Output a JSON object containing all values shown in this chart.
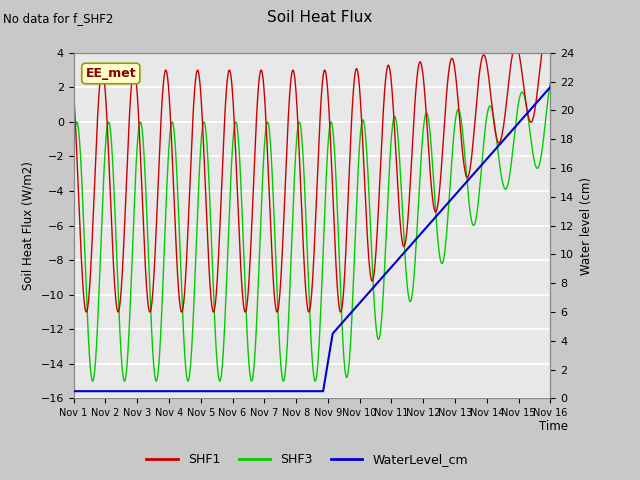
{
  "title": "Soil Heat Flux",
  "subtitle": "No data for f_SHF2",
  "ylabel_left": "Soil Heat Flux (W/m2)",
  "ylabel_right": "Water level (cm)",
  "xlabel": "Time",
  "ylim_left": [
    -16,
    4
  ],
  "ylim_right": [
    0,
    24
  ],
  "yticks_left": [
    -16,
    -14,
    -12,
    -10,
    -8,
    -6,
    -4,
    -2,
    0,
    2,
    4
  ],
  "yticks_right": [
    0,
    2,
    4,
    6,
    8,
    10,
    12,
    14,
    16,
    18,
    20,
    22,
    24
  ],
  "xtick_labels": [
    "Nov 1",
    "Nov 2",
    "Nov 3",
    "Nov 4",
    "Nov 5",
    "Nov 6",
    "Nov 7",
    "Nov 8",
    "Nov 9",
    "Nov 10",
    "Nov 11",
    "Nov 12",
    "Nov 13",
    "Nov 14",
    "Nov 15",
    "Nov 16"
  ],
  "color_shf1": "#cc0000",
  "color_shf3": "#00cc00",
  "color_water": "#0000cc",
  "fig_bg": "#c8c8c8",
  "plot_bg": "#e8e8e8",
  "annotation_box": "EE_met",
  "annotation_color": "#880000",
  "annotation_bg": "#ffffcc",
  "annotation_edge": "#999900"
}
